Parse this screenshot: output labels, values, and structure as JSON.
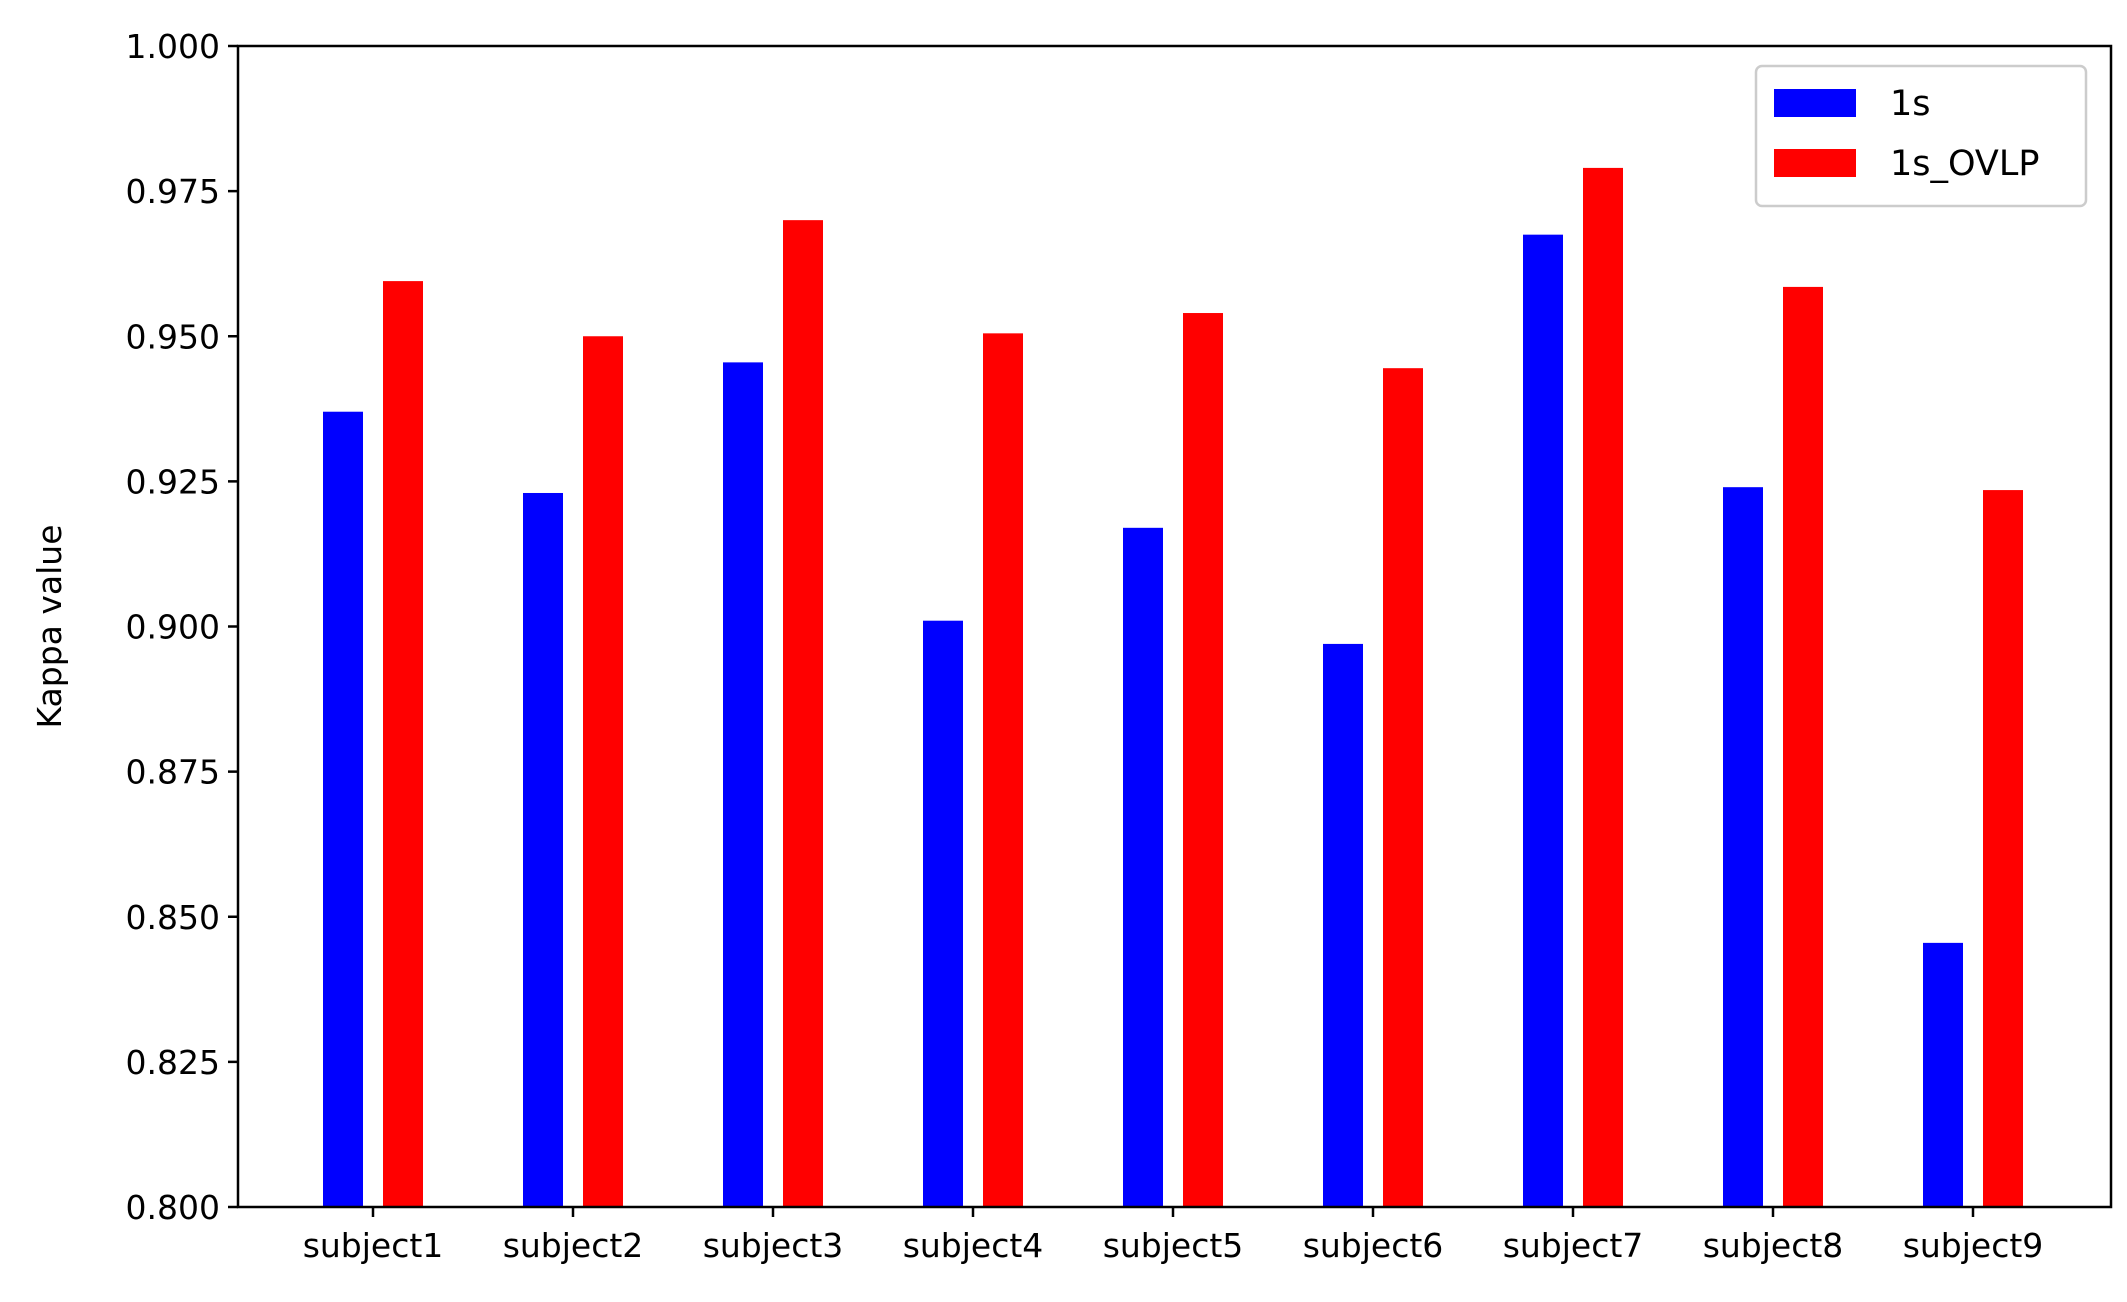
{
  "chart_data": {
    "type": "bar",
    "title": "",
    "xlabel": "",
    "ylabel": "Kappa value",
    "categories": [
      "subject1",
      "subject2",
      "subject3",
      "subject4",
      "subject5",
      "subject6",
      "subject7",
      "subject8",
      "subject9"
    ],
    "series": [
      {
        "name": "1s",
        "color": "#0000ff",
        "values": [
          0.937,
          0.923,
          0.9455,
          0.901,
          0.917,
          0.897,
          0.9675,
          0.924,
          0.8455
        ]
      },
      {
        "name": "1s_OVLP",
        "color": "#ff0000",
        "values": [
          0.9595,
          0.95,
          0.97,
          0.9505,
          0.954,
          0.9445,
          0.979,
          0.9585,
          0.9235
        ]
      }
    ],
    "ylim": [
      0.8,
      1.0
    ],
    "yticks": [
      "0.800",
      "0.825",
      "0.850",
      "0.875",
      "0.900",
      "0.925",
      "0.950",
      "0.975",
      "1.000"
    ],
    "grid": false,
    "legend_position": "top-right"
  }
}
